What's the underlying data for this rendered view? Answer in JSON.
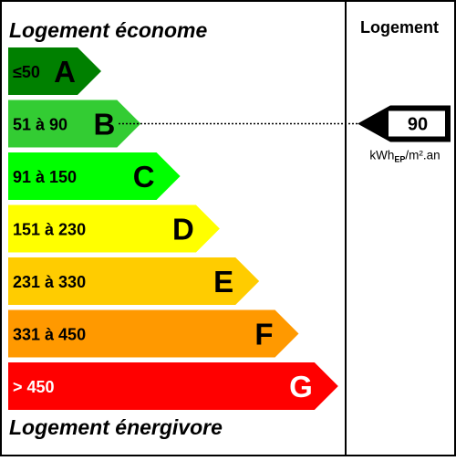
{
  "header": {
    "top_label": "Logement économe",
    "bottom_label": "Logement énergivore",
    "column_title": "Logement"
  },
  "classes": [
    {
      "range": "≤50",
      "letter": "A",
      "color": "#008000"
    },
    {
      "range": "51 à 90",
      "letter": "B",
      "color": "#33cc33"
    },
    {
      "range": "91 à 150",
      "letter": "C",
      "color": "#00ff00"
    },
    {
      "range": "151 à 230",
      "letter": "D",
      "color": "#ffff00"
    },
    {
      "range": "231 à 330",
      "letter": "E",
      "color": "#ffcc00"
    },
    {
      "range": "331 à 450",
      "letter": "F",
      "color": "#ff9900"
    },
    {
      "range": "> 450",
      "letter": "G",
      "color": "#ff0000"
    }
  ],
  "indicator": {
    "value": "90",
    "unit_main": "kWh",
    "unit_sub": "EP",
    "unit_tail": "/m².an",
    "points_to_class": "B"
  }
}
